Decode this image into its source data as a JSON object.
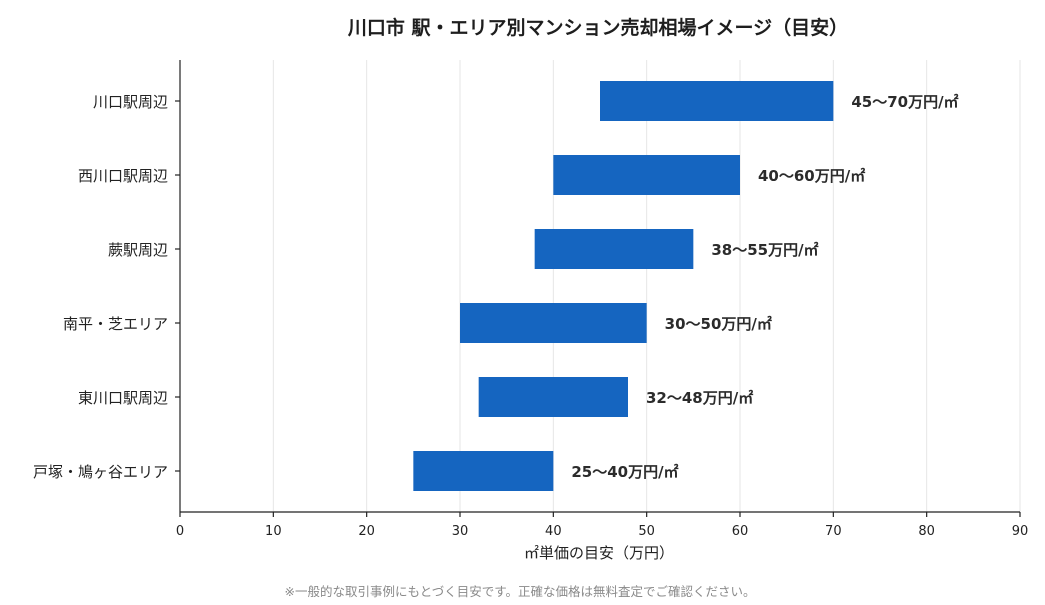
{
  "chart_data": {
    "type": "bar",
    "orientation": "horizontal",
    "title": "川口市 駅・エリア別マンション売却相場イメージ（目安）",
    "xlabel": "㎡単価の目安（万円）",
    "xlim": [
      0,
      90
    ],
    "xticks": [
      0,
      10,
      20,
      30,
      40,
      50,
      60,
      70,
      80,
      90
    ],
    "grid": "vertical",
    "bar_color": "#1565c0",
    "categories": [
      "川口駅周辺",
      "西川口駅周辺",
      "蕨駅周辺",
      "南平・芝エリア",
      "東川口駅周辺",
      "戸塚・鳩ヶ谷エリア"
    ],
    "ranges": [
      {
        "low": 45,
        "high": 70,
        "label": "45〜70万円/㎡"
      },
      {
        "low": 40,
        "high": 60,
        "label": "40〜60万円/㎡"
      },
      {
        "low": 38,
        "high": 55,
        "label": "38〜55万円/㎡"
      },
      {
        "low": 30,
        "high": 50,
        "label": "30〜50万円/㎡"
      },
      {
        "low": 32,
        "high": 48,
        "label": "32〜48万円/㎡"
      },
      {
        "low": 25,
        "high": 40,
        "label": "25〜40万円/㎡"
      }
    ]
  },
  "footnote": "※一般的な取引事例にもとづく目安です。正確な価格は無料査定でご確認ください。"
}
